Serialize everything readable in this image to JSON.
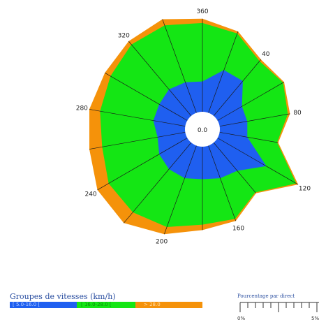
{
  "chart_data": {
    "type": "radar",
    "directions": [
      0,
      20,
      40,
      60,
      80,
      100,
      120,
      140,
      160,
      180,
      200,
      220,
      240,
      260,
      280,
      300,
      320,
      340
    ],
    "direction_labels": [
      "360",
      "40",
      "80",
      "120",
      "160",
      "200",
      "240",
      "280",
      "320"
    ],
    "center_label": "0.0",
    "series": [
      {
        "name": "[ 5.0-16.0 [",
        "color": "#1f5ff0",
        "values": [
          1.4,
          2.1,
          2.1,
          1.3,
          1.3,
          1.3,
          2.6,
          1.7,
          1.6,
          1.5,
          1.6,
          1.6,
          1.5,
          1.3,
          1.5,
          1.5,
          1.6,
          1.5
        ]
      },
      {
        "name": "[ 16.0-28.0 [",
        "color": "#14e614",
        "values": [
          4.1,
          3.9,
          3.3,
          3.5,
          3.2,
          2.7,
          4.2,
          3.0,
          3.6,
          3.6,
          4.0,
          4.2,
          4.2,
          3.9,
          4.0,
          4.1,
          4.3,
          4.3
        ]
      },
      {
        "name": "> 28.0",
        "color": "#f5920a",
        "values": [
          4.3,
          4.0,
          3.4,
          3.55,
          3.3,
          2.75,
          4.3,
          3.05,
          3.7,
          3.85,
          4.35,
          4.85,
          4.8,
          4.5,
          4.5,
          4.4,
          4.5,
          4.6
        ]
      }
    ],
    "rmax": 5
  },
  "legend": {
    "title": "Groupes de vitesses (km/h)",
    "items": [
      {
        "label": "[ 5.0-16.0 [",
        "color": "#1f5ff0"
      },
      {
        "label": "[ 16.0-28.0 [",
        "color": "#14e614"
      },
      {
        "label": "> 28.0",
        "color": "#f5920a"
      }
    ]
  },
  "scale": {
    "title": "Pourcentage par direct",
    "min_label": "0%",
    "max_label": "5%"
  }
}
